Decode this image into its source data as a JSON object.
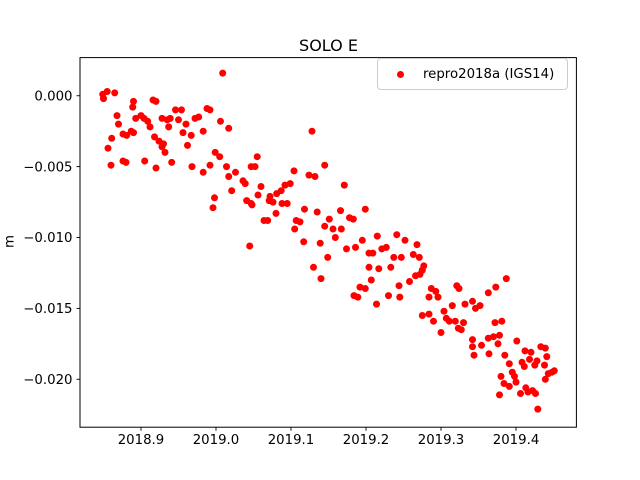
{
  "figure": {
    "background": "#ffffff"
  },
  "chart_data": {
    "type": "scatter",
    "title": "SOLO E",
    "xlabel": "",
    "ylabel": "m",
    "grid": false,
    "legend": {
      "position": "upper right",
      "entries": [
        {
          "label": "repro2018a (IGS14)",
          "marker": "dot",
          "marker_color": "#ff0000"
        }
      ]
    },
    "xlim": [
      2018.8187,
      2019.4805
    ],
    "ylim": [
      -0.02338,
      0.00269
    ],
    "x_ticks": {
      "values": [
        2018.9,
        2019.0,
        2019.1,
        2019.2,
        2019.3,
        2019.4
      ],
      "labels": [
        "2018.9",
        "2019.0",
        "2019.1",
        "2019.2",
        "2019.3",
        "2019.4"
      ]
    },
    "y_ticks": {
      "values": [
        0.0,
        -0.005,
        -0.01,
        -0.015,
        -0.02
      ],
      "labels": [
        "0.000",
        "−0.005",
        "−0.010",
        "−0.015",
        "−0.020"
      ]
    },
    "axis_color": "#000000",
    "series": [
      {
        "name": "repro2018a (IGS14)",
        "color": "#ff0000",
        "marker_radius_px": 3.5,
        "points": [
          [
            2018.849,
            0.0001
          ],
          [
            2018.855,
            0.0003
          ],
          [
            2018.865,
            0.0002
          ],
          [
            2018.85,
            -0.0002
          ],
          [
            2018.89,
            -0.0004
          ],
          [
            2018.916,
            -0.0003
          ],
          [
            2018.92,
            -0.0004
          ],
          [
            2018.889,
            -0.0008
          ],
          [
            2018.868,
            -0.0014
          ],
          [
            2018.893,
            -0.0016
          ],
          [
            2018.9,
            -0.0014
          ],
          [
            2018.904,
            -0.0016
          ],
          [
            2018.87,
            -0.002
          ],
          [
            2018.909,
            -0.0018
          ],
          [
            2018.912,
            -0.0022
          ],
          [
            2018.928,
            -0.0016
          ],
          [
            2018.876,
            -0.0027
          ],
          [
            2018.881,
            -0.0028
          ],
          [
            2018.887,
            -0.0025
          ],
          [
            2018.89,
            -0.0026
          ],
          [
            2018.861,
            -0.003
          ],
          [
            2018.918,
            -0.0029
          ],
          [
            2018.924,
            -0.0032
          ],
          [
            2018.928,
            -0.0036
          ],
          [
            2018.93,
            -0.0034
          ],
          [
            2018.856,
            -0.0037
          ],
          [
            2018.932,
            -0.004
          ],
          [
            2018.876,
            -0.0046
          ],
          [
            2018.88,
            -0.0047
          ],
          [
            2018.86,
            -0.0049
          ],
          [
            2018.905,
            -0.0046
          ],
          [
            2018.92,
            -0.0051
          ],
          [
            2019.009,
            0.0016
          ],
          [
            2018.946,
            -0.001
          ],
          [
            2018.954,
            -0.001
          ],
          [
            2018.988,
            -0.0009
          ],
          [
            2018.992,
            -0.001
          ],
          [
            2018.939,
            -0.0016
          ],
          [
            2018.935,
            -0.0017
          ],
          [
            2018.95,
            -0.0017
          ],
          [
            2018.972,
            -0.0016
          ],
          [
            2018.977,
            -0.0015
          ],
          [
            2018.96,
            -0.002
          ],
          [
            2019.006,
            -0.0018
          ],
          [
            2018.937,
            -0.0022
          ],
          [
            2018.956,
            -0.0026
          ],
          [
            2018.983,
            -0.0025
          ],
          [
            2019.017,
            -0.0023
          ],
          [
            2018.967,
            -0.0028
          ],
          [
            2018.962,
            -0.0035
          ],
          [
            2018.999,
            -0.004
          ],
          [
            2019.005,
            -0.0043
          ],
          [
            2018.941,
            -0.0047
          ],
          [
            2018.968,
            -0.005
          ],
          [
            2018.992,
            -0.0049
          ],
          [
            2018.983,
            -0.0054
          ],
          [
            2019.014,
            -0.005
          ],
          [
            2019.047,
            -0.005
          ],
          [
            2019.017,
            -0.0057
          ],
          [
            2019.026,
            -0.0054
          ],
          [
            2019.036,
            -0.006
          ],
          [
            2019.039,
            -0.0062
          ],
          [
            2019.021,
            -0.0067
          ],
          [
            2018.998,
            -0.0072
          ],
          [
            2018.996,
            -0.0079
          ],
          [
            2019.041,
            -0.0074
          ],
          [
            2019.047,
            -0.0076
          ],
          [
            2019.045,
            -0.0106
          ],
          [
            2019.128,
            -0.0025
          ],
          [
            2019.055,
            -0.0043
          ],
          [
            2019.052,
            -0.005
          ],
          [
            2019.104,
            -0.0053
          ],
          [
            2019.124,
            -0.0056
          ],
          [
            2019.132,
            -0.0057
          ],
          [
            2019.145,
            -0.0049
          ],
          [
            2019.06,
            -0.0064
          ],
          [
            2019.092,
            -0.0063
          ],
          [
            2019.099,
            -0.0062
          ],
          [
            2019.056,
            -0.007
          ],
          [
            2019.072,
            -0.0071
          ],
          [
            2019.081,
            -0.0069
          ],
          [
            2019.087,
            -0.0067
          ],
          [
            2019.071,
            -0.0074
          ],
          [
            2019.076,
            -0.0075
          ],
          [
            2019.088,
            -0.0076
          ],
          [
            2019.095,
            -0.0076
          ],
          [
            2019.048,
            -0.0077
          ],
          [
            2019.118,
            -0.008
          ],
          [
            2019.135,
            -0.0082
          ],
          [
            2019.08,
            -0.0083
          ],
          [
            2019.064,
            -0.0088
          ],
          [
            2019.069,
            -0.0088
          ],
          [
            2019.107,
            -0.0088
          ],
          [
            2019.112,
            -0.0089
          ],
          [
            2019.105,
            -0.0094
          ],
          [
            2019.145,
            -0.0092
          ],
          [
            2019.151,
            -0.0087
          ],
          [
            2019.156,
            -0.0094
          ],
          [
            2019.159,
            -0.01
          ],
          [
            2019.117,
            -0.0103
          ],
          [
            2019.139,
            -0.0104
          ],
          [
            2019.149,
            -0.0114
          ],
          [
            2019.13,
            -0.0121
          ],
          [
            2019.14,
            -0.0129
          ],
          [
            2019.171,
            -0.0063
          ],
          [
            2019.166,
            -0.0081
          ],
          [
            2019.199,
            -0.008
          ],
          [
            2019.178,
            -0.0086
          ],
          [
            2019.183,
            -0.0087
          ],
          [
            2019.167,
            -0.0094
          ],
          [
            2019.215,
            -0.0099
          ],
          [
            2019.195,
            -0.0102
          ],
          [
            2019.241,
            -0.0098
          ],
          [
            2019.174,
            -0.0108
          ],
          [
            2019.186,
            -0.0107
          ],
          [
            2019.204,
            -0.0111
          ],
          [
            2019.209,
            -0.0111
          ],
          [
            2019.221,
            -0.0108
          ],
          [
            2019.227,
            -0.0107
          ],
          [
            2019.252,
            -0.0102
          ],
          [
            2019.268,
            -0.0105
          ],
          [
            2019.263,
            -0.0112
          ],
          [
            2019.237,
            -0.0114
          ],
          [
            2019.247,
            -0.0114
          ],
          [
            2019.271,
            -0.0114
          ],
          [
            2019.204,
            -0.0121
          ],
          [
            2019.217,
            -0.0122
          ],
          [
            2019.233,
            -0.0121
          ],
          [
            2019.207,
            -0.013
          ],
          [
            2019.192,
            -0.0135
          ],
          [
            2019.199,
            -0.0136
          ],
          [
            2019.184,
            -0.0141
          ],
          [
            2019.244,
            -0.0134
          ],
          [
            2019.258,
            -0.0131
          ],
          [
            2019.266,
            -0.0127
          ],
          [
            2019.272,
            -0.0126
          ],
          [
            2019.23,
            -0.0141
          ],
          [
            2019.245,
            -0.0142
          ],
          [
            2019.214,
            -0.0147
          ],
          [
            2019.189,
            -0.0142
          ],
          [
            2019.277,
            -0.012
          ],
          [
            2019.275,
            -0.0123
          ],
          [
            2019.287,
            -0.0136
          ],
          [
            2019.293,
            -0.0138
          ],
          [
            2019.321,
            -0.0134
          ],
          [
            2019.324,
            -0.0136
          ],
          [
            2019.284,
            -0.0142
          ],
          [
            2019.296,
            -0.0142
          ],
          [
            2019.387,
            -0.0129
          ],
          [
            2019.373,
            -0.0135
          ],
          [
            2019.363,
            -0.0139
          ],
          [
            2019.315,
            -0.0148
          ],
          [
            2019.332,
            -0.0147
          ],
          [
            2019.342,
            -0.0145
          ],
          [
            2019.346,
            -0.015
          ],
          [
            2019.352,
            -0.0148
          ],
          [
            2019.304,
            -0.0152
          ],
          [
            2019.284,
            -0.0154
          ],
          [
            2019.275,
            -0.0155
          ],
          [
            2019.29,
            -0.0159
          ],
          [
            2019.307,
            -0.0157
          ],
          [
            2019.311,
            -0.0159
          ],
          [
            2019.319,
            -0.0159
          ],
          [
            2019.33,
            -0.016
          ],
          [
            2019.323,
            -0.0164
          ],
          [
            2019.327,
            -0.0165
          ],
          [
            2019.3,
            -0.0167
          ],
          [
            2019.342,
            -0.0172
          ],
          [
            2019.342,
            -0.0177
          ],
          [
            2019.354,
            -0.0176
          ],
          [
            2019.363,
            -0.0171
          ],
          [
            2019.37,
            -0.017
          ],
          [
            2019.378,
            -0.0169
          ],
          [
            2019.381,
            -0.0159
          ],
          [
            2019.372,
            -0.016
          ],
          [
            2019.344,
            -0.0183
          ],
          [
            2019.364,
            -0.0182
          ],
          [
            2019.38,
            -0.0198
          ],
          [
            2019.384,
            -0.0203
          ],
          [
            2019.378,
            -0.0211
          ],
          [
            2019.376,
            -0.0175
          ],
          [
            2019.385,
            -0.0183
          ],
          [
            2019.401,
            -0.0173
          ],
          [
            2019.391,
            -0.0189
          ],
          [
            2019.408,
            -0.0188
          ],
          [
            2019.411,
            -0.0191
          ],
          [
            2019.42,
            -0.0181
          ],
          [
            2019.428,
            -0.0187
          ],
          [
            2019.439,
            -0.0178
          ],
          [
            2019.441,
            -0.0184
          ],
          [
            2019.438,
            -0.019
          ],
          [
            2019.443,
            -0.0196
          ],
          [
            2019.448,
            -0.0195
          ],
          [
            2019.451,
            -0.0194
          ],
          [
            2019.395,
            -0.0195
          ],
          [
            2019.398,
            -0.0198
          ],
          [
            2019.391,
            -0.0205
          ],
          [
            2019.4,
            -0.0202
          ],
          [
            2019.413,
            -0.0206
          ],
          [
            2019.416,
            -0.0209
          ],
          [
            2019.422,
            -0.0208
          ],
          [
            2019.426,
            -0.021
          ],
          [
            2019.429,
            -0.0221
          ],
          [
            2019.433,
            -0.0177
          ],
          [
            2019.412,
            -0.018
          ],
          [
            2019.418,
            -0.0186
          ],
          [
            2019.425,
            -0.019
          ],
          [
            2019.406,
            -0.021
          ],
          [
            2019.439,
            -0.02
          ]
        ]
      }
    ]
  }
}
